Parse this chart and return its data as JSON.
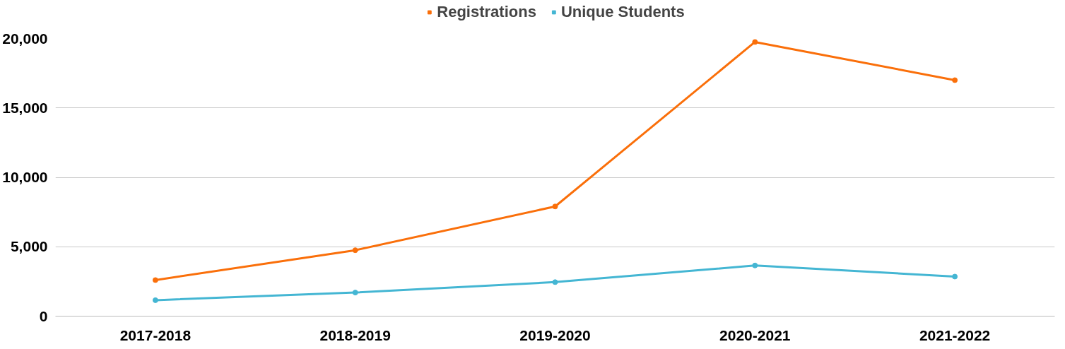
{
  "chart_data": {
    "type": "line",
    "categories": [
      "2017-2018",
      "2018-2019",
      "2019-2020",
      "2020-2021",
      "2021-2022"
    ],
    "series": [
      {
        "name": "Registrations",
        "color": "#fa6f0a",
        "values": [
          2600,
          4750,
          7900,
          19750,
          17000
        ]
      },
      {
        "name": "Unique Students",
        "color": "#44b6d3",
        "values": [
          1150,
          1700,
          2450,
          3650,
          2850
        ]
      }
    ],
    "ylim": [
      0,
      20000
    ],
    "yticks": [
      0,
      {
        "value": 5000,
        "label": "5,000"
      },
      {
        "value": 10000,
        "label": "10,000"
      },
      {
        "value": 15000,
        "label": "15,000"
      },
      {
        "value": 20000,
        "label": "20,000"
      }
    ],
    "grid": "y",
    "legend": "top",
    "marker": "circle",
    "line_style": "solid"
  }
}
